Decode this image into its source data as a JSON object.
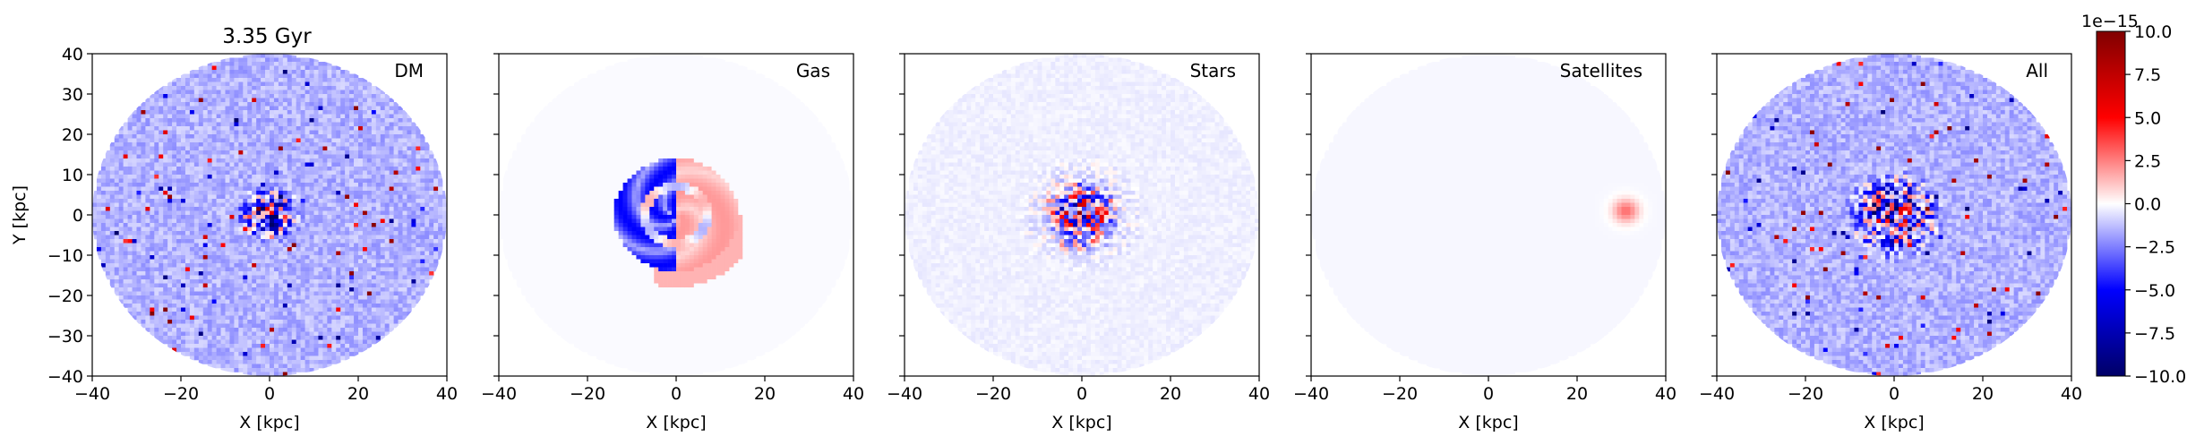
{
  "figure": {
    "title": "3.35 Gyr",
    "colorbar": {
      "offset_label": "1e−15",
      "ticks": [
        10.0,
        7.5,
        5.0,
        2.5,
        0.0,
        -2.5,
        -5.0,
        -7.5,
        -10.0
      ],
      "tick_labels": [
        "10.0",
        "7.5",
        "5.0",
        "2.5",
        "0.0",
        "−2.5",
        "−5.0",
        "−7.5",
        "−10.0"
      ],
      "cmap": "seismic",
      "colors": {
        "low": "#000066",
        "mid_low": "#0000ff",
        "mid": "#ffffff",
        "mid_high": "#ff0000",
        "high": "#800000"
      }
    }
  },
  "chart_data": [
    {
      "type": "heatmap",
      "panel_label": "DM",
      "title": "3.35 Gyr",
      "xlabel": "X [kpc]",
      "ylabel": "Y [kpc]",
      "xlim": [
        -40,
        40
      ],
      "ylim": [
        -40,
        40
      ],
      "xticks": [
        -40,
        -20,
        0,
        20,
        40
      ],
      "yticks": [
        -40,
        -30,
        -20,
        -10,
        0,
        10,
        20,
        30,
        40
      ],
      "tick_labels_x": [
        "−40",
        "−20",
        "0",
        "20",
        "40"
      ],
      "tick_labels_y": [
        "−40",
        "−30",
        "−20",
        "−10",
        "0",
        "10",
        "20",
        "30",
        "40"
      ],
      "value_range": [
        -1e-14,
        1e-14
      ],
      "description_values": {
        "disk_radius_kpc": 40,
        "background_value": -1.5e-15,
        "core_radius_kpc": 8,
        "core_value": -4e-15
      }
    },
    {
      "type": "heatmap",
      "panel_label": "Gas",
      "xlabel": "X [kpc]",
      "ylabel": "",
      "xlim": [
        -40,
        40
      ],
      "ylim": [
        -40,
        40
      ],
      "xticks": [
        -40,
        -20,
        0,
        20,
        40
      ],
      "tick_labels_x": [
        "−40",
        "−20",
        "0",
        "20",
        "40"
      ],
      "value_range": [
        -1e-14,
        1e-14
      ],
      "description_values": {
        "disk_radius_kpc": 40,
        "background_value": -1e-16,
        "left_lobe_value": -5e-15,
        "right_lobe_value": 2e-15
      }
    },
    {
      "type": "heatmap",
      "panel_label": "Stars",
      "xlabel": "X [kpc]",
      "ylabel": "",
      "xlim": [
        -40,
        40
      ],
      "ylim": [
        -40,
        40
      ],
      "xticks": [
        -40,
        -20,
        0,
        20,
        40
      ],
      "tick_labels_x": [
        "−40",
        "−20",
        "0",
        "20",
        "40"
      ],
      "value_range": [
        -1e-14,
        1e-14
      ],
      "description_values": {
        "disk_radius_kpc": 40,
        "background_value": -3e-16,
        "core_radius_kpc": 10
      }
    },
    {
      "type": "heatmap",
      "panel_label": "Satellites",
      "xlabel": "X [kpc]",
      "ylabel": "",
      "xlim": [
        -40,
        40
      ],
      "ylim": [
        -40,
        40
      ],
      "xticks": [
        -40,
        -20,
        0,
        20,
        40
      ],
      "tick_labels_x": [
        "−40",
        "−20",
        "0",
        "20",
        "40"
      ],
      "value_range": [
        -1e-14,
        1e-14
      ],
      "description_values": {
        "disk_radius_kpc": 40,
        "background_value": -1.5e-16,
        "satellite_x_kpc": 31,
        "satellite_y_kpc": 1,
        "satellite_peak": 3e-15
      }
    },
    {
      "type": "heatmap",
      "panel_label": "All",
      "xlabel": "X [kpc]",
      "ylabel": "",
      "xlim": [
        -40,
        40
      ],
      "ylim": [
        -40,
        40
      ],
      "xticks": [
        -40,
        -20,
        0,
        20,
        40
      ],
      "tick_labels_x": [
        "−40",
        "−20",
        "0",
        "20",
        "40"
      ],
      "value_range": [
        -1e-14,
        1e-14
      ],
      "description_values": {
        "disk_radius_kpc": 40,
        "background_value": -1.5e-15,
        "core_radius_kpc": 12
      }
    }
  ]
}
